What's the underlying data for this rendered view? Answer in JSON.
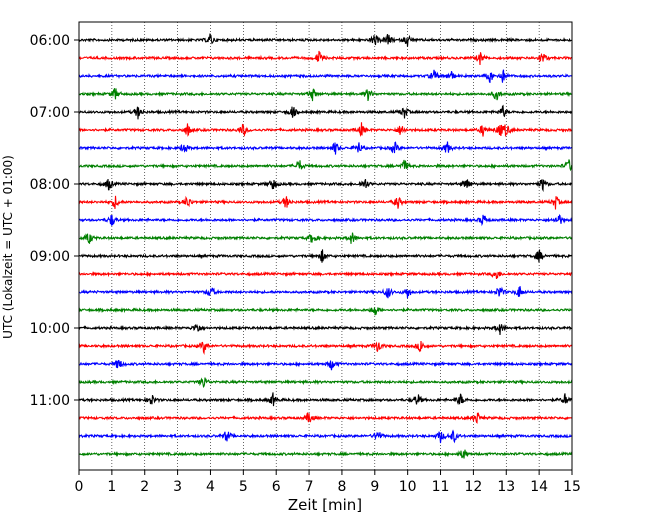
{
  "chart_data": {
    "type": "line",
    "title": "",
    "xlabel": "Zeit  [min]",
    "ylabel": "UTC (Lokalzeit = UTC + 01:00)",
    "xlim": [
      0,
      15
    ],
    "x_ticks": [
      0,
      1,
      2,
      3,
      4,
      5,
      6,
      7,
      8,
      9,
      10,
      11,
      12,
      13,
      14,
      15
    ],
    "x_tick_labels": [
      "0",
      "1",
      "2",
      "3",
      "4",
      "5",
      "6",
      "7",
      "8",
      "9",
      "10",
      "11",
      "12",
      "13",
      "14",
      "15"
    ],
    "y_tick_labels": [
      "06:00",
      "07:00",
      "08:00",
      "09:00",
      "10:00",
      "11:00"
    ],
    "y_tick_rows": [
      0,
      4,
      8,
      12,
      16,
      20
    ],
    "row_interval_minutes": 15,
    "grid": {
      "x": "dotted-vertical",
      "y": false
    },
    "legend": "none",
    "colors": [
      "#000000",
      "#ff0000",
      "#0000ff",
      "#008000"
    ],
    "rows": [
      {
        "start": "06:00",
        "color": "#000000",
        "events": [
          4.0,
          9.0,
          9.4,
          10.0
        ]
      },
      {
        "start": "06:15",
        "color": "#ff0000",
        "events": [
          7.3,
          12.2,
          14.1
        ]
      },
      {
        "start": "06:30",
        "color": "#0000ff",
        "events": [
          10.8,
          11.3,
          12.5,
          12.9
        ]
      },
      {
        "start": "06:45",
        "color": "#008000",
        "events": [
          1.1,
          7.1,
          8.8,
          12.7
        ]
      },
      {
        "start": "07:00",
        "color": "#000000",
        "events": [
          1.8,
          6.5,
          9.9,
          12.9
        ]
      },
      {
        "start": "07:15",
        "color": "#ff0000",
        "events": [
          3.3,
          5.0,
          8.6,
          9.8,
          12.3,
          12.8,
          13.0
        ]
      },
      {
        "start": "07:30",
        "color": "#0000ff",
        "events": [
          3.2,
          7.8,
          8.5,
          9.6,
          11.2
        ]
      },
      {
        "start": "07:45",
        "color": "#008000",
        "events": [
          6.7,
          9.9,
          14.9
        ]
      },
      {
        "start": "08:00",
        "color": "#000000",
        "events": [
          0.9,
          5.9,
          8.7,
          11.8,
          14.1
        ]
      },
      {
        "start": "08:15",
        "color": "#ff0000",
        "events": [
          1.1,
          3.3,
          6.3,
          9.7,
          14.5
        ]
      },
      {
        "start": "08:30",
        "color": "#0000ff",
        "events": [
          1.0,
          12.3,
          14.6
        ]
      },
      {
        "start": "08:45",
        "color": "#008000",
        "events": [
          0.3,
          7.1,
          8.3
        ]
      },
      {
        "start": "09:00",
        "color": "#000000",
        "events": [
          7.4,
          14.0
        ]
      },
      {
        "start": "09:15",
        "color": "#ff0000",
        "events": [
          12.7
        ]
      },
      {
        "start": "09:30",
        "color": "#0000ff",
        "events": [
          4.0,
          9.4,
          10.0,
          12.8,
          13.4
        ]
      },
      {
        "start": "09:45",
        "color": "#008000",
        "events": [
          9.0
        ]
      },
      {
        "start": "10:00",
        "color": "#000000",
        "events": [
          3.6,
          12.8
        ]
      },
      {
        "start": "10:15",
        "color": "#ff0000",
        "events": [
          3.8,
          9.1,
          10.4
        ]
      },
      {
        "start": "10:30",
        "color": "#0000ff",
        "events": [
          1.2,
          7.7
        ]
      },
      {
        "start": "10:45",
        "color": "#008000",
        "events": [
          3.8
        ]
      },
      {
        "start": "11:00",
        "color": "#000000",
        "events": [
          2.2,
          5.9,
          10.3,
          11.6,
          14.8
        ]
      },
      {
        "start": "11:15",
        "color": "#ff0000",
        "events": [
          7.0,
          12.1
        ]
      },
      {
        "start": "11:30",
        "color": "#0000ff",
        "events": [
          4.5,
          9.1,
          11.0,
          11.4
        ]
      },
      {
        "start": "11:45",
        "color": "#008000",
        "events": [
          11.7
        ]
      }
    ]
  }
}
